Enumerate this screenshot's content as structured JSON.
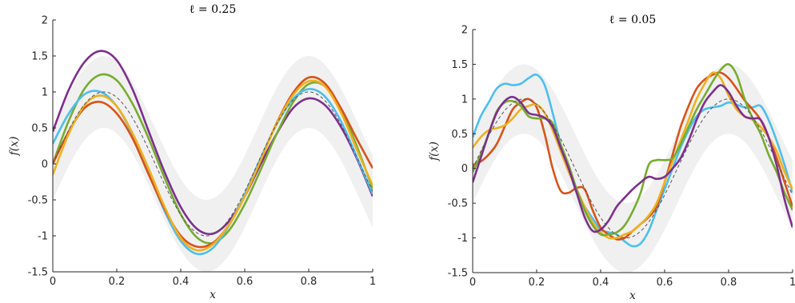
{
  "chart_data": [
    {
      "type": "line",
      "title": "ℓ = 0.25",
      "xlabel": "x",
      "ylabel": "f(x)",
      "xlim": [
        0,
        1
      ],
      "ylim": [
        -1.5,
        2
      ],
      "xticks": [
        "0",
        "0.2",
        "0.4",
        "0.6",
        "0.8",
        "1"
      ],
      "yticks": [
        "-1.5",
        "-1",
        "-0.5",
        "0",
        "0.5",
        "1",
        "1.5",
        "2"
      ],
      "band": {
        "lower_offset": -0.5,
        "upper_offset": 0.5,
        "color": "#f0f0f0"
      },
      "mean": {
        "style": "dashed",
        "color": "#555555"
      },
      "x": [
        0,
        0.05,
        0.1,
        0.15,
        0.2,
        0.25,
        0.3,
        0.35,
        0.4,
        0.45,
        0.5,
        0.55,
        0.6,
        0.65,
        0.7,
        0.75,
        0.8,
        0.85,
        0.9,
        0.95,
        1
      ],
      "series": [
        {
          "color": "#7e2f8e",
          "values": [
            0.45,
            1.03,
            1.42,
            1.57,
            1.44,
            1.03,
            0.45,
            -0.12,
            -0.6,
            -0.9,
            -0.97,
            -0.8,
            -0.45,
            0.0,
            0.42,
            0.77,
            0.91,
            0.82,
            0.52,
            0.08,
            -0.45
          ]
        },
        {
          "color": "#77ac30",
          "values": [
            0.0,
            0.6,
            1.05,
            1.24,
            1.16,
            0.83,
            0.35,
            -0.2,
            -0.7,
            -1.02,
            -1.1,
            -0.93,
            -0.56,
            -0.08,
            0.42,
            0.85,
            1.11,
            1.08,
            0.75,
            0.25,
            -0.35
          ]
        },
        {
          "color": "#4dbeee",
          "values": [
            0.28,
            0.7,
            0.97,
            1.0,
            0.8,
            0.4,
            -0.13,
            -0.66,
            -1.07,
            -1.25,
            -1.17,
            -0.86,
            -0.42,
            0.08,
            0.55,
            0.9,
            1.04,
            0.94,
            0.6,
            0.1,
            -0.42
          ]
        },
        {
          "color": "#d95319",
          "values": [
            0.0,
            0.45,
            0.78,
            0.86,
            0.7,
            0.35,
            -0.15,
            -0.63,
            -1.0,
            -1.15,
            -1.1,
            -0.85,
            -0.45,
            0.05,
            0.57,
            0.98,
            1.2,
            1.12,
            0.78,
            0.35,
            -0.06
          ]
        },
        {
          "color": "#edb120",
          "values": [
            -0.15,
            0.42,
            0.82,
            0.95,
            0.8,
            0.42,
            -0.07,
            -0.6,
            -1.03,
            -1.2,
            -1.12,
            -0.85,
            -0.45,
            0.05,
            0.56,
            0.95,
            1.15,
            1.08,
            0.72,
            0.2,
            -0.3
          ]
        }
      ]
    },
    {
      "type": "line",
      "title": "ℓ = 0.05",
      "xlabel": "x",
      "ylabel": "f(x)",
      "xlim": [
        0,
        1
      ],
      "ylim": [
        -1.5,
        2
      ],
      "xticks": [
        "0",
        "0.2",
        "0.4",
        "0.6",
        "0.8",
        "1"
      ],
      "yticks": [
        "-1.5",
        "-1",
        "-0.5",
        "0",
        "0.5",
        "1",
        "1.5",
        "2"
      ],
      "band": {
        "lower_offset": -0.5,
        "upper_offset": 0.5,
        "color": "#f0f0f0"
      },
      "mean": {
        "style": "dashed",
        "color": "#555555"
      },
      "x": [
        0,
        0.025,
        0.05,
        0.075,
        0.1,
        0.125,
        0.15,
        0.175,
        0.2,
        0.225,
        0.25,
        0.275,
        0.3,
        0.325,
        0.35,
        0.375,
        0.4,
        0.425,
        0.45,
        0.475,
        0.5,
        0.525,
        0.55,
        0.575,
        0.6,
        0.625,
        0.65,
        0.675,
        0.7,
        0.725,
        0.75,
        0.775,
        0.8,
        0.825,
        0.85,
        0.875,
        0.9,
        0.925,
        0.95,
        0.975,
        1
      ],
      "series": [
        {
          "color": "#4dbeee",
          "values": [
            0.45,
            0.75,
            0.95,
            1.15,
            1.22,
            1.2,
            1.22,
            1.3,
            1.35,
            1.2,
            0.8,
            0.35,
            0.0,
            -0.35,
            -0.55,
            -0.72,
            -0.88,
            -0.92,
            -0.95,
            -1.05,
            -1.12,
            -1.08,
            -0.9,
            -0.6,
            -0.3,
            0.0,
            0.3,
            0.55,
            0.75,
            0.85,
            0.88,
            0.9,
            0.95,
            0.92,
            0.88,
            0.88,
            0.9,
            0.7,
            0.4,
            0.05,
            -0.35
          ]
        },
        {
          "color": "#d95319",
          "values": [
            0.05,
            0.1,
            0.2,
            0.35,
            0.6,
            0.85,
            0.95,
            1.0,
            0.88,
            0.5,
            0.0,
            -0.32,
            -0.35,
            -0.28,
            -0.3,
            -0.6,
            -0.85,
            -0.95,
            -1.02,
            -1.0,
            -0.9,
            -0.8,
            -0.7,
            -0.55,
            -0.2,
            0.2,
            0.6,
            0.9,
            1.15,
            1.28,
            1.35,
            1.38,
            1.3,
            1.15,
            0.98,
            0.85,
            0.7,
            0.45,
            0.15,
            -0.2,
            -0.55
          ]
        },
        {
          "color": "#edb120",
          "values": [
            0.3,
            0.45,
            0.55,
            0.58,
            0.62,
            0.72,
            0.85,
            0.9,
            0.92,
            0.8,
            0.55,
            0.25,
            -0.05,
            -0.3,
            -0.55,
            -0.78,
            -0.92,
            -1.0,
            -1.0,
            -0.95,
            -0.9,
            -0.8,
            -0.68,
            -0.5,
            -0.2,
            0.1,
            0.4,
            0.7,
            1.0,
            1.22,
            1.38,
            1.3,
            1.05,
            0.85,
            0.75,
            0.7,
            0.6,
            0.45,
            0.25,
            -0.05,
            -0.3
          ]
        },
        {
          "color": "#77ac30",
          "values": [
            -0.05,
            0.2,
            0.5,
            0.82,
            0.95,
            0.97,
            0.9,
            0.75,
            0.72,
            0.72,
            0.65,
            0.35,
            0.05,
            -0.3,
            -0.6,
            -0.82,
            -0.95,
            -0.95,
            -0.92,
            -0.82,
            -0.62,
            -0.35,
            0.05,
            0.12,
            0.12,
            0.15,
            0.35,
            0.6,
            0.85,
            1.05,
            1.25,
            1.42,
            1.5,
            1.35,
            1.0,
            0.72,
            0.5,
            0.2,
            -0.05,
            -0.35,
            -0.6
          ]
        },
        {
          "color": "#7e2f8e",
          "values": [
            -0.2,
            0.15,
            0.5,
            0.8,
            0.97,
            1.03,
            0.95,
            0.8,
            0.77,
            0.73,
            0.6,
            0.3,
            0.0,
            -0.35,
            -0.7,
            -0.9,
            -0.88,
            -0.75,
            -0.55,
            -0.42,
            -0.3,
            -0.2,
            -0.12,
            -0.15,
            -0.12,
            0.0,
            0.15,
            0.4,
            0.7,
            0.95,
            1.1,
            1.2,
            1.1,
            0.9,
            0.75,
            0.72,
            0.7,
            0.45,
            0.05,
            -0.45,
            -0.85
          ]
        }
      ]
    }
  ]
}
